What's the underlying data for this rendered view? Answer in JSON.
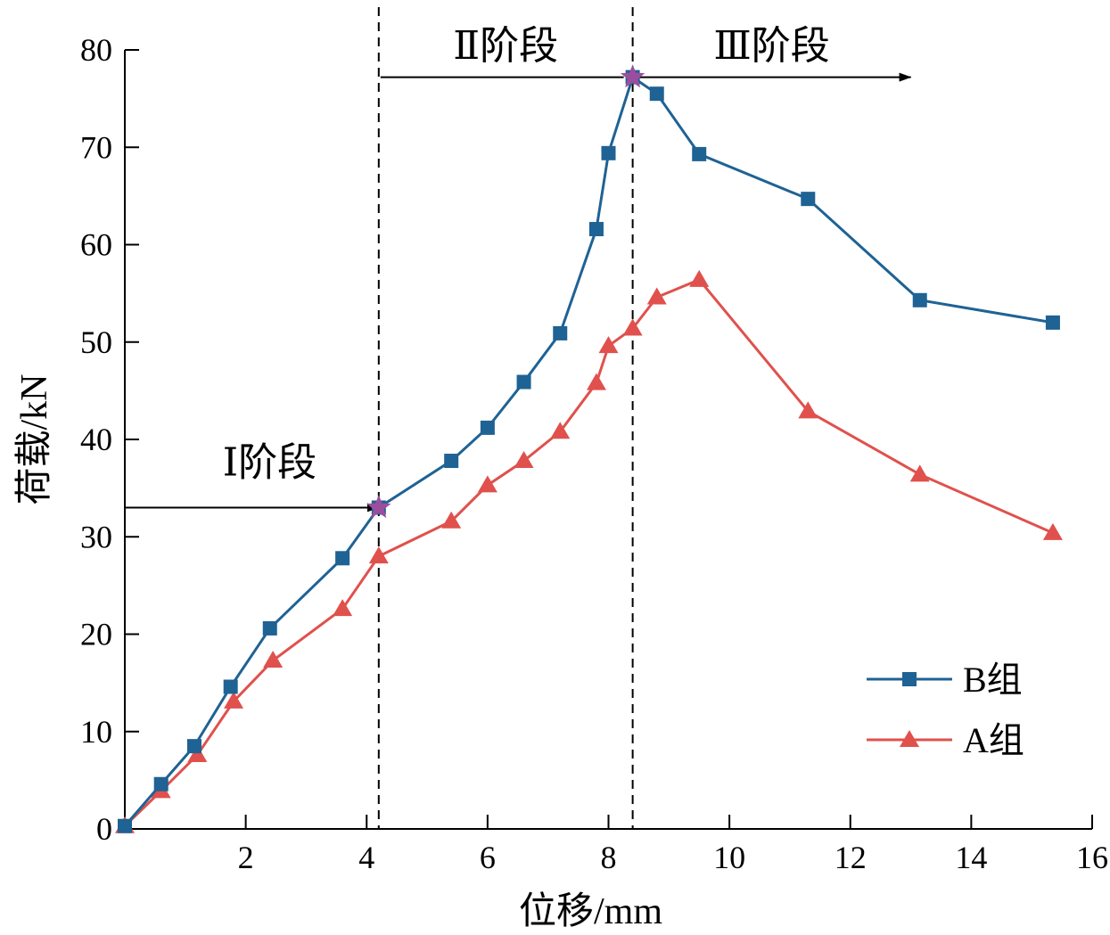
{
  "chart_data": {
    "type": "line",
    "xlabel": "位移/mm",
    "ylabel": "荷载/kN",
    "xlim": [
      0,
      16
    ],
    "ylim": [
      0,
      80
    ],
    "xticks": [
      2,
      4,
      6,
      8,
      10,
      12,
      14,
      16
    ],
    "yticks": [
      0,
      10,
      20,
      30,
      40,
      50,
      60,
      70,
      80
    ],
    "legend_position": "bottom-right",
    "series": [
      {
        "name": "B组",
        "color": "#1f6294",
        "marker": "square",
        "points": [
          [
            0.0,
            0.3
          ],
          [
            0.6,
            4.6
          ],
          [
            1.15,
            8.5
          ],
          [
            1.75,
            14.6
          ],
          [
            2.4,
            20.6
          ],
          [
            3.6,
            27.8
          ],
          [
            4.2,
            33.0
          ],
          [
            5.4,
            37.8
          ],
          [
            6.0,
            41.2
          ],
          [
            6.6,
            45.9
          ],
          [
            7.2,
            50.9
          ],
          [
            7.8,
            61.6
          ],
          [
            8.0,
            69.4
          ],
          [
            8.4,
            77.2
          ],
          [
            8.8,
            75.5
          ],
          [
            9.5,
            69.3
          ],
          [
            11.3,
            64.7
          ],
          [
            13.15,
            54.3
          ],
          [
            15.35,
            52.0
          ]
        ]
      },
      {
        "name": "A组",
        "color": "#e0514d",
        "marker": "triangle",
        "points": [
          [
            0.0,
            0.3
          ],
          [
            0.6,
            3.9
          ],
          [
            1.2,
            7.6
          ],
          [
            1.8,
            13.1
          ],
          [
            2.45,
            17.3
          ],
          [
            3.6,
            22.6
          ],
          [
            4.2,
            28.0
          ],
          [
            5.4,
            31.6
          ],
          [
            6.0,
            35.3
          ],
          [
            6.6,
            37.8
          ],
          [
            7.2,
            40.8
          ],
          [
            7.8,
            45.8
          ],
          [
            8.0,
            49.6
          ],
          [
            8.4,
            51.4
          ],
          [
            8.8,
            54.6
          ],
          [
            9.5,
            56.4
          ],
          [
            11.3,
            42.9
          ],
          [
            13.15,
            36.4
          ],
          [
            15.35,
            30.4
          ]
        ]
      }
    ],
    "stage_points": [
      {
        "x": 4.2,
        "y": 33.0,
        "color": "#9b4e9e"
      },
      {
        "x": 8.4,
        "y": 77.2,
        "color": "#9b4e9e"
      }
    ],
    "divider_lines": [
      4.2,
      8.4
    ],
    "stages": [
      {
        "label": "Ⅰ阶段",
        "from": 0.0,
        "to": 4.2,
        "arrow_y": 33.0
      },
      {
        "label": "Ⅱ阶段",
        "from": 4.2,
        "to": 8.4,
        "arrow_y": 77.2
      },
      {
        "label": "Ⅲ阶段",
        "from": 8.4,
        "to": 13.0,
        "arrow_y": 77.2
      }
    ]
  }
}
